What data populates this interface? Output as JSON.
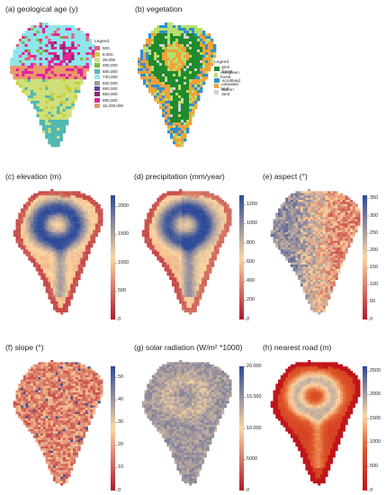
{
  "panels": {
    "geo": {
      "title": "(a) geological age (y)",
      "legend_title": "Legend",
      "legend": [
        {
          "label": "500",
          "color": "#e8607a"
        },
        {
          "label": "8,000",
          "color": "#c9cc3a"
        },
        {
          "label": "36,000",
          "color": "#cfe07a"
        },
        {
          "label": "490,000",
          "color": "#7fba3a"
        },
        {
          "label": "580,000",
          "color": "#52b8b0"
        },
        {
          "label": "730,000",
          "color": "#8fe6ec"
        },
        {
          "label": "830,000",
          "color": "#9a9a9a"
        },
        {
          "label": "850,000",
          "color": "#6b3fa0"
        },
        {
          "label": "863,000",
          "color": "#8a2a6a"
        },
        {
          "label": "890,000",
          "color": "#e0249a"
        },
        {
          "label": "15,200,000",
          "color": "#e89a6a"
        }
      ]
    },
    "veg": {
      "title": "(b) vegetation",
      "legend_title": "Legend",
      "legend": [
        {
          "label": "pine forest",
          "color": "#1f8a2e"
        },
        {
          "label": "evergreen forest",
          "color": "#b7e06a"
        },
        {
          "label": "scrubland",
          "color": "#2f8fd0"
        },
        {
          "label": "cultivated land",
          "color": "#f0a23a"
        },
        {
          "label": "barren land",
          "color": "#d2d2d2"
        }
      ]
    },
    "elev": {
      "title": "(c) elevation (m)",
      "ticks": [
        "2000",
        "1500",
        "1000",
        "500",
        "0"
      ],
      "range": [
        0,
        2200
      ]
    },
    "precip": {
      "title": "(d) precipitation (mm/year)",
      "ticks": [
        "1200",
        "1000",
        "800",
        "600",
        "400",
        "200",
        "0"
      ],
      "range": [
        0,
        1300
      ]
    },
    "aspect": {
      "title": "(e) aspect (°)",
      "ticks": [
        "350",
        "300",
        "250",
        "200",
        "150",
        "100",
        "50",
        "0"
      ],
      "range": [
        0,
        360
      ]
    },
    "slope": {
      "title": "(f) slope (°)",
      "ticks": [
        "50",
        "40",
        "30",
        "20",
        "10",
        "0"
      ],
      "range": [
        0,
        55
      ]
    },
    "solar": {
      "title": "(g) solar radiation (W/m² *1000)",
      "ticks": [
        "20.000",
        "15.000",
        "10.000",
        "5000",
        "0"
      ],
      "range": [
        0,
        20000
      ]
    },
    "road": {
      "title": "(h) nearest road (m)",
      "ticks": [
        "2500",
        "2000",
        "1500",
        "1000",
        "500",
        "0"
      ],
      "range": [
        0,
        2600
      ]
    }
  },
  "colors": {
    "ramp_low": "#b2182b",
    "ramp_mid": "#fdd5a0",
    "ramp_high": "#2c4a9a",
    "road_low": "#c0151a"
  }
}
